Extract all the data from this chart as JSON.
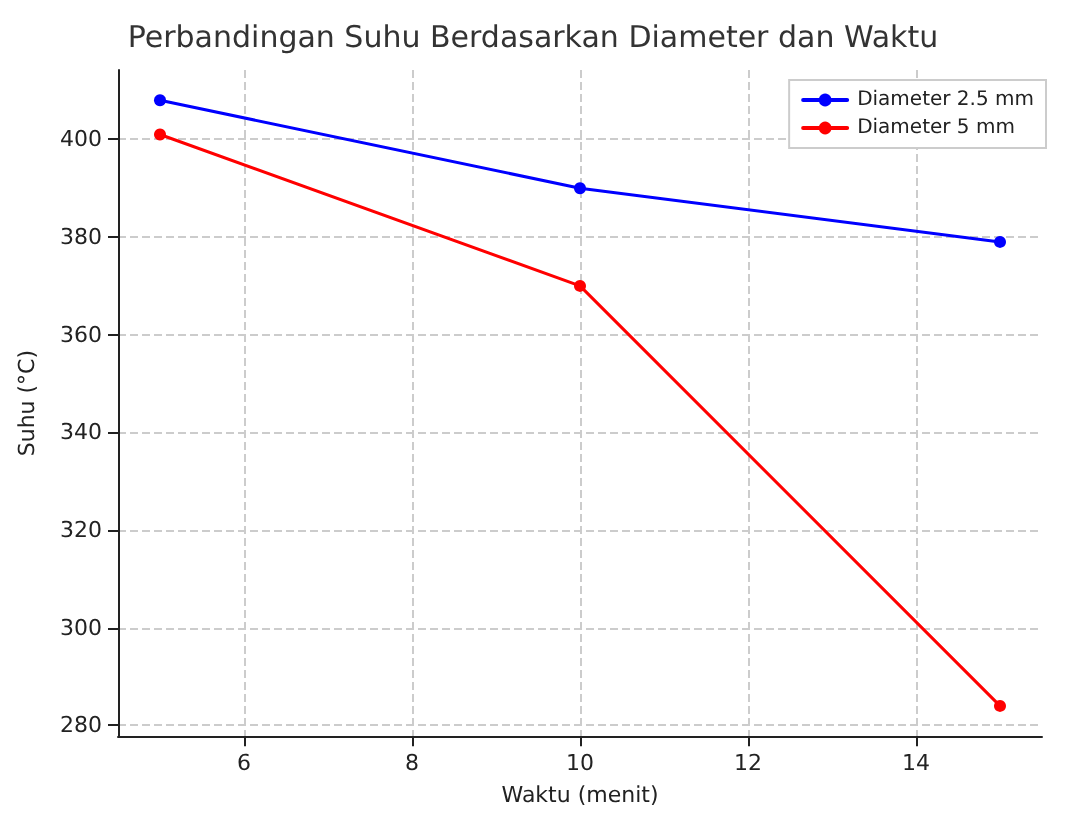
{
  "chart_data": {
    "type": "line",
    "title": "Perbandingan Suhu Berdasarkan Diameter dan Waktu",
    "xlabel": "Waktu (menit)",
    "ylabel": "Suhu (°C)",
    "x": [
      5,
      10,
      15
    ],
    "series": [
      {
        "name": "Diameter 2.5 mm",
        "color": "#0000ff",
        "values": [
          408,
          390,
          379
        ]
      },
      {
        "name": "Diameter 5 mm",
        "color": "#ff0000",
        "values": [
          401,
          370,
          284
        ]
      }
    ],
    "xlim": [
      4.5,
      15.5
    ],
    "xticks": [
      6,
      8,
      10,
      12,
      14
    ],
    "ylim": [
      277.8,
      414.2
    ],
    "yticks": [
      280,
      300,
      320,
      340,
      360,
      380,
      400
    ],
    "grid": true,
    "legend": "top right",
    "marker": "circle",
    "line_style": "solid"
  }
}
